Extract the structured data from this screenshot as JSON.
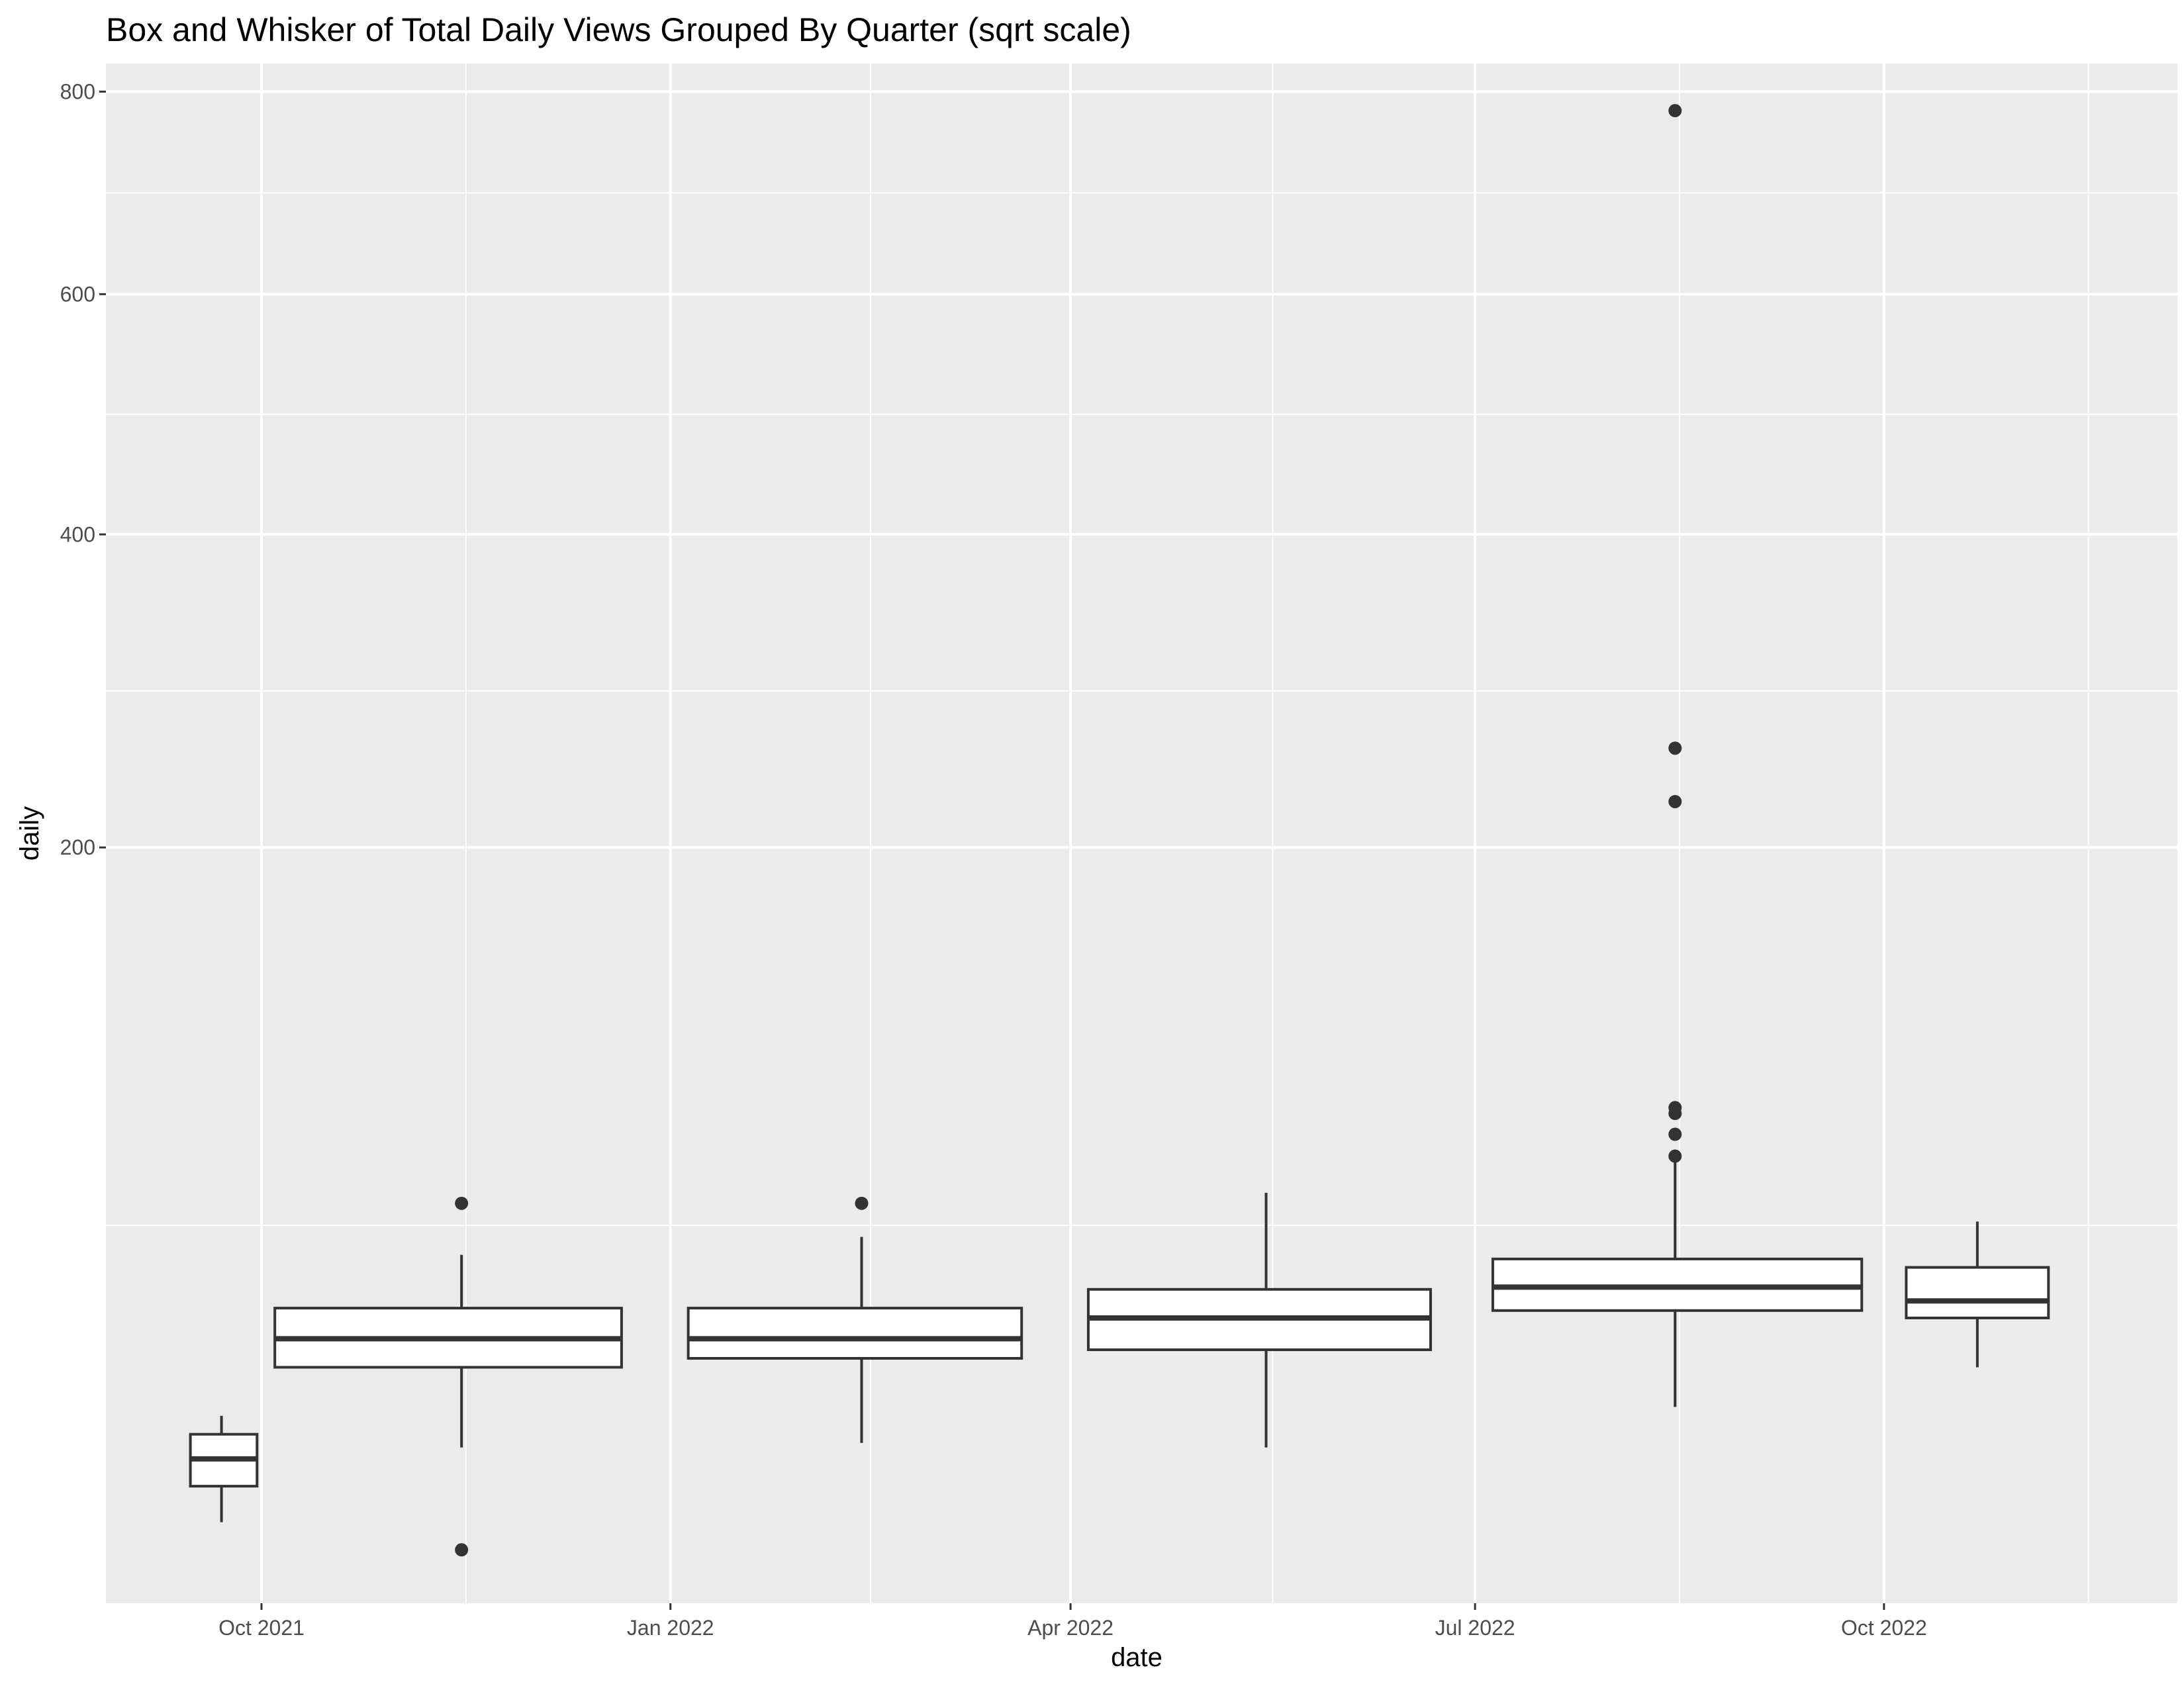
{
  "chart_data": {
    "type": "box",
    "title": "Box and Whisker of Total Daily Views Grouped By Quarter (sqrt scale)",
    "xlabel": "date",
    "ylabel": "daily",
    "y_scale": "sqrt",
    "ylim": [
      0,
      830
    ],
    "xlim": [
      "2021-08-27",
      "2022-12-06"
    ],
    "x_ticks": [
      "2021-10-01",
      "2022-01-01",
      "2022-04-01",
      "2022-07-01",
      "2022-10-01"
    ],
    "x_tick_labels": [
      "Oct 2021",
      "Jan 2022",
      "Apr 2022",
      "Jul 2022",
      "Oct 2022"
    ],
    "y_ticks": [
      200,
      400,
      600,
      800
    ],
    "y_tick_labels": [
      "200",
      "400",
      "600",
      "800"
    ],
    "grid": true,
    "theme_colors": {
      "panel": "#ebebeb",
      "grid": "#ffffff",
      "box_fill": "#ffffff",
      "box_line": "#333333"
    },
    "boxes": [
      {
        "x_start": "2021-09-15",
        "x_end": "2021-09-30",
        "center": "2021-09-22",
        "lower_whisker": 2.3,
        "q1": 4.8,
        "median": 7.3,
        "q3": 10.0,
        "upper_whisker": 12.3,
        "outliers": []
      },
      {
        "x_start": "2021-10-04",
        "x_end": "2021-12-21",
        "center": "2021-11-15",
        "lower_whisker": 8.5,
        "q1": 19.5,
        "median": 24.5,
        "q3": 30.5,
        "upper_whisker": 42.5,
        "outliers": [
          1.0,
          56.0
        ]
      },
      {
        "x_start": "2022-01-05",
        "x_end": "2022-03-21",
        "center": "2022-02-13",
        "lower_whisker": 9.0,
        "q1": 21.0,
        "median": 24.5,
        "q3": 30.5,
        "upper_whisker": 47.0,
        "outliers": [
          56.0
        ]
      },
      {
        "x_start": "2022-04-05",
        "x_end": "2022-06-21",
        "center": "2022-05-15",
        "lower_whisker": 8.5,
        "q1": 22.5,
        "median": 28.5,
        "q3": 34.5,
        "upper_whisker": 59.0,
        "outliers": []
      },
      {
        "x_start": "2022-07-05",
        "x_end": "2022-09-26",
        "center": "2022-08-15",
        "lower_whisker": 13.5,
        "q1": 30.0,
        "median": 35.0,
        "q3": 41.5,
        "upper_whisker": 68.0,
        "outliers": [
          70.0,
          77.0,
          84.0,
          86.0,
          225.0,
          256.0,
          780.0
        ]
      },
      {
        "x_start": "2022-10-06",
        "x_end": "2022-11-07",
        "center": "2022-10-22",
        "lower_whisker": 19.5,
        "q1": 28.5,
        "median": 32.0,
        "q3": 39.5,
        "upper_whisker": 51.0,
        "outliers": []
      }
    ]
  }
}
